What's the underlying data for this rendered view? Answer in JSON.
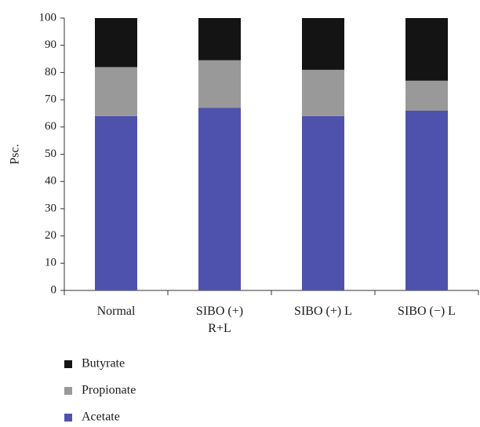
{
  "chart_data": {
    "type": "bar",
    "stacked": true,
    "categories": [
      "Normal",
      "SIBO (+) R+L",
      "SIBO (+) L",
      "SIBO (−) L"
    ],
    "category_lines": [
      [
        "Normal"
      ],
      [
        "SIBO (+)",
        "R+L"
      ],
      [
        "SIBO (+) L"
      ],
      [
        "SIBO (−) L"
      ]
    ],
    "series": [
      {
        "name": "Acetate",
        "values": [
          64,
          67,
          64,
          66
        ],
        "color": "#4f52ad"
      },
      {
        "name": "Propionate",
        "values": [
          18,
          17.5,
          17,
          11
        ],
        "color": "#999999"
      },
      {
        "name": "Butyrate",
        "values": [
          18,
          15.5,
          19,
          23
        ],
        "color": "#141414"
      }
    ],
    "ylabel": "Psc.",
    "xlabel": "",
    "ylim": [
      0,
      100
    ],
    "yticks": [
      0,
      10,
      20,
      30,
      40,
      50,
      60,
      70,
      80,
      90,
      100
    ],
    "grid": false,
    "legend_position": "bottom-left",
    "legend_order": [
      "Butyrate",
      "Propionate",
      "Acetate"
    ]
  }
}
